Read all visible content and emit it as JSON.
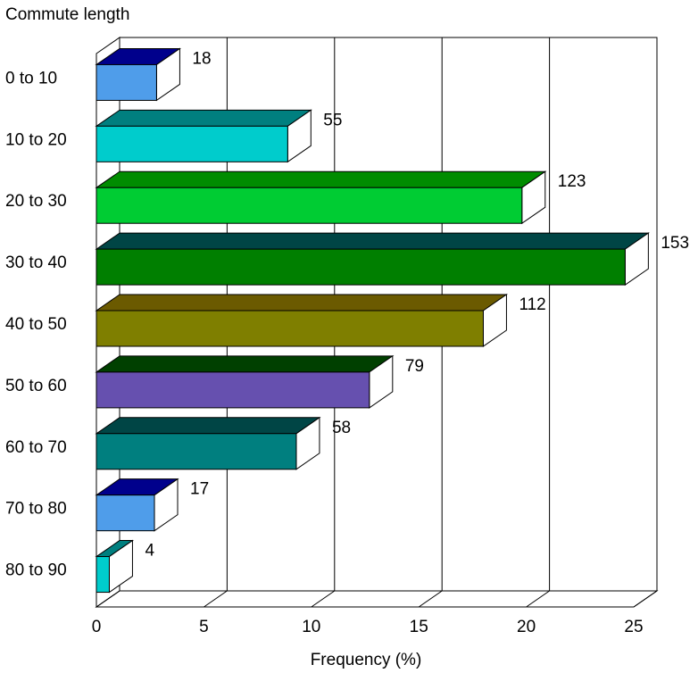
{
  "chart_data": {
    "type": "bar",
    "orientation": "horizontal",
    "three_d": true,
    "title": "",
    "ylabel": "Commute length",
    "xlabel": "Frequency (%)",
    "xlim": [
      0,
      25
    ],
    "xticks": [
      "0",
      "5",
      "10",
      "15",
      "20",
      "25"
    ],
    "grid": true,
    "categories": [
      "0 to 10",
      "10 to 20",
      "20 to 30",
      "30 to 40",
      "40 to 50",
      "50 to 60",
      "60 to 70",
      "70 to 80",
      "80 to 90"
    ],
    "values": [
      2.8,
      8.9,
      19.8,
      24.6,
      18.0,
      12.7,
      9.3,
      2.7,
      0.6
    ],
    "data_labels": [
      "18",
      "55",
      "123",
      "153",
      "112",
      "79",
      "58",
      "17",
      "4"
    ],
    "colors": [
      {
        "front": "#4F9DEA",
        "top": "#00008C"
      },
      {
        "front": "#00CCCC",
        "top": "#007F7F"
      },
      {
        "front": "#00CC33",
        "top": "#008C00"
      },
      {
        "front": "#007F00",
        "top": "#004545"
      },
      {
        "front": "#7F7F00",
        "top": "#6B5A00"
      },
      {
        "front": "#6650AF",
        "top": "#004000"
      },
      {
        "front": "#007F7F",
        "top": "#004545"
      },
      {
        "front": "#4F9DEA",
        "top": "#00008C"
      },
      {
        "front": "#00CCCC",
        "top": "#007F7F"
      }
    ]
  }
}
